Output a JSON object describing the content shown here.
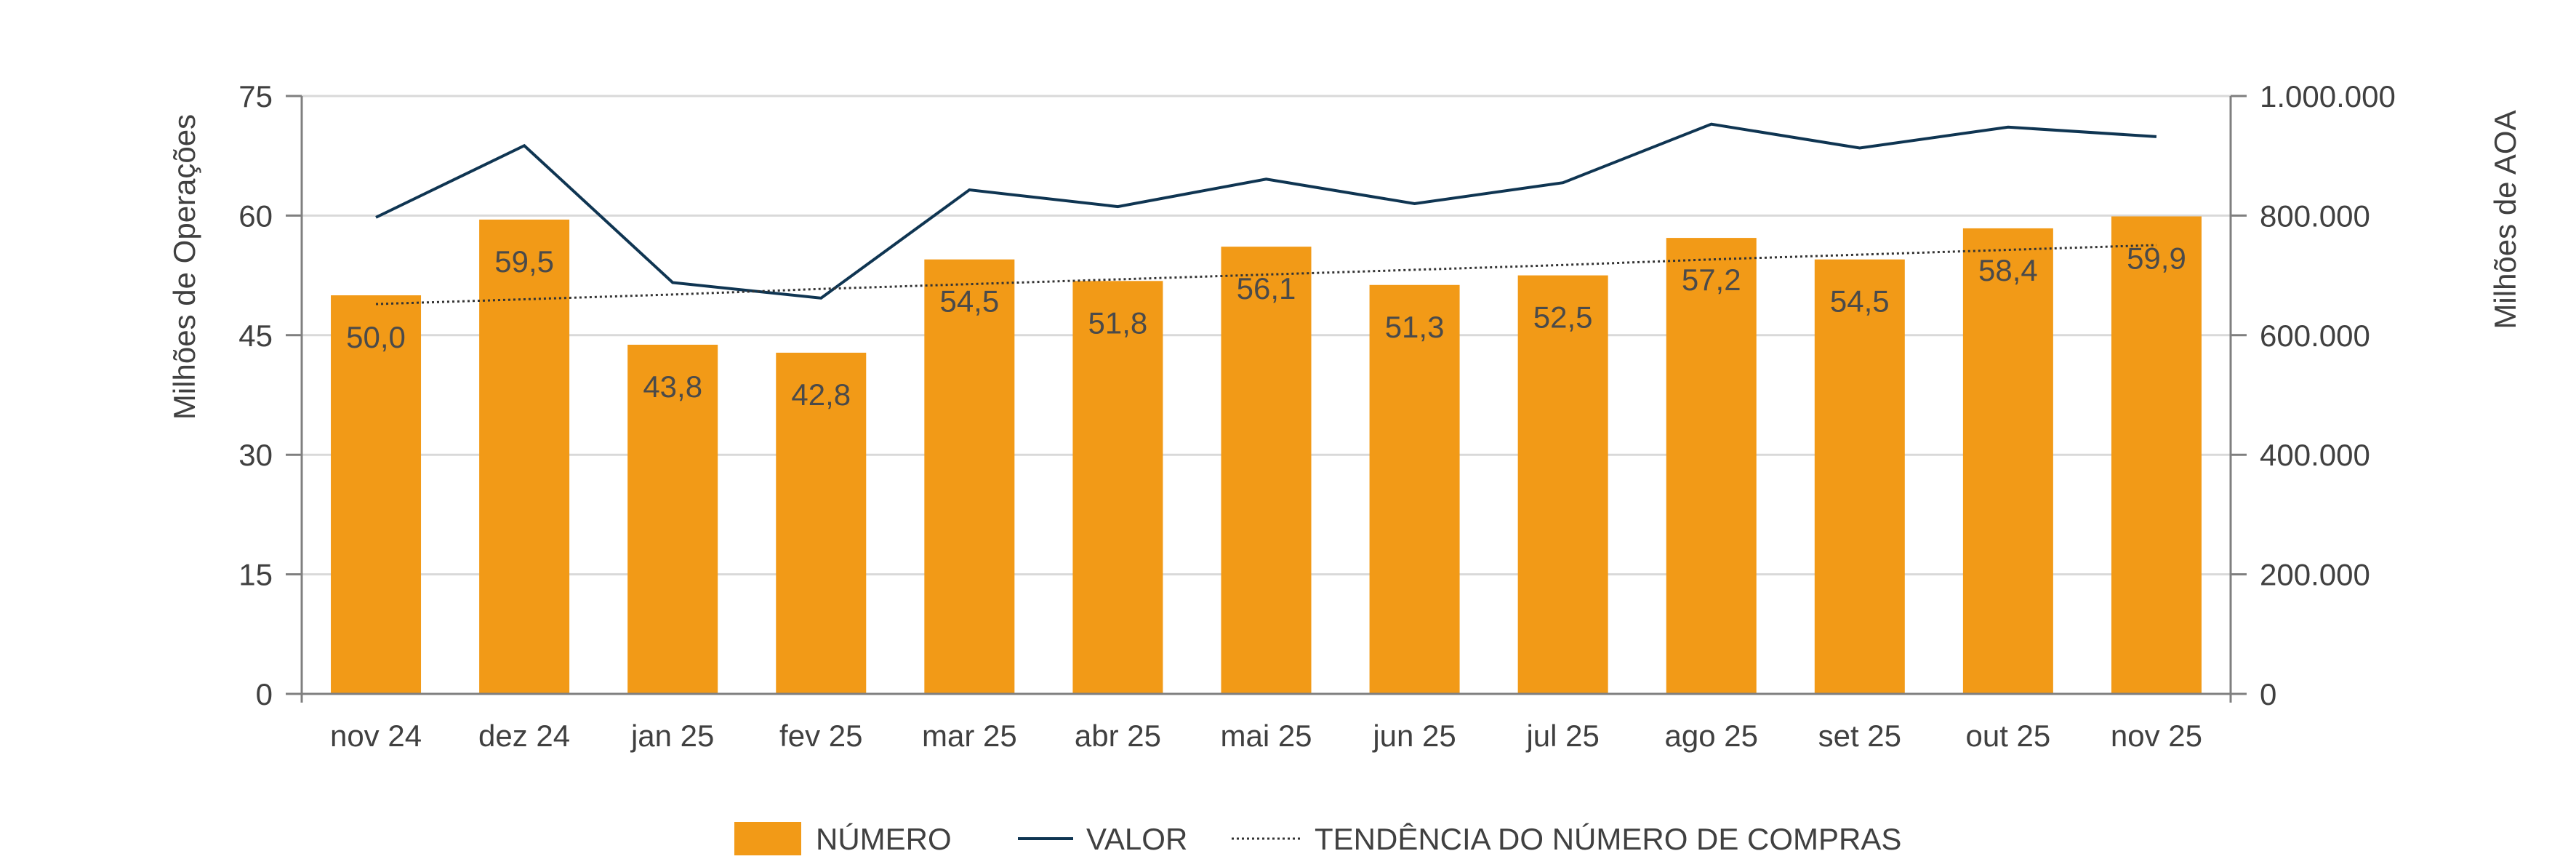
{
  "chart_data": {
    "type": "bar",
    "categories": [
      "nov 24",
      "dez 24",
      "jan 25",
      "fev 25",
      "mar 25",
      "abr 25",
      "mai 25",
      "jun 25",
      "jul 25",
      "ago 25",
      "set 25",
      "out 25",
      "nov 25"
    ],
    "series": [
      {
        "name": "NÚMERO",
        "type": "bar",
        "axis": "left",
        "values": [
          50.0,
          59.5,
          43.8,
          42.8,
          54.5,
          51.8,
          56.1,
          51.3,
          52.5,
          57.2,
          54.5,
          58.4,
          59.9
        ],
        "labels": [
          "50,0",
          "59,5",
          "43,8",
          "42,8",
          "54,5",
          "51,8",
          "56,1",
          "51,3",
          "52,5",
          "57,2",
          "54,5",
          "58,4",
          "59,9"
        ]
      },
      {
        "name": "VALOR",
        "type": "line",
        "axis": "right",
        "values": [
          797000,
          917000,
          688000,
          662000,
          843000,
          815000,
          861000,
          820000,
          855000,
          953000,
          913000,
          948000,
          932000
        ]
      },
      {
        "name": "TENDÊNCIA DO NÚMERO DE COMPRAS",
        "type": "line",
        "style": "dotted",
        "axis": "left",
        "values": [
          48.9,
          49.5,
          50.1,
          50.8,
          51.4,
          52.0,
          52.6,
          53.2,
          53.8,
          54.5,
          55.1,
          55.7,
          56.3
        ]
      }
    ],
    "y_left": {
      "label": "Milhões de Operações",
      "range": [
        0,
        75
      ],
      "ticks": [
        0,
        15,
        30,
        45,
        60,
        75
      ],
      "tick_labels": [
        "0",
        "15",
        "30",
        "45",
        "60",
        "75"
      ]
    },
    "y_right": {
      "label": "Milhões de AOA",
      "range": [
        0,
        1000000
      ],
      "ticks": [
        0,
        200000,
        400000,
        600000,
        800000,
        1000000
      ],
      "tick_labels": [
        "0",
        "200.000",
        "400.000",
        "600.000",
        "800.000",
        "1.000.000"
      ]
    },
    "grid": true,
    "legend_position": "bottom-center",
    "legend": [
      "NÚMERO",
      "VALOR",
      "TENDÊNCIA DO NÚMERO DE COMPRAS"
    ],
    "colors": {
      "bar": "#f29a17",
      "line": "#0f3552",
      "trend": "#333333",
      "grid": "#d9d9d9",
      "axis": "#7f7f7f"
    }
  }
}
